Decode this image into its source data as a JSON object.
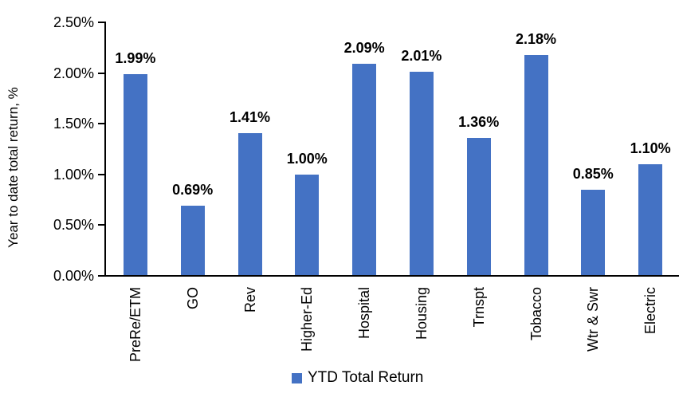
{
  "chart_data": {
    "type": "bar",
    "categories": [
      "PreRe/ETM",
      "GO",
      "Rev",
      "Higher-Ed",
      "Hospital",
      "Housing",
      "Trnspt",
      "Tobacco",
      "Wtr & Swr",
      "Electric"
    ],
    "values": [
      1.99,
      0.69,
      1.41,
      1.0,
      2.09,
      2.01,
      1.36,
      2.18,
      0.85,
      1.1
    ],
    "value_labels": [
      "1.99%",
      "0.69%",
      "1.41%",
      "1.00%",
      "2.09%",
      "2.01%",
      "1.36%",
      "2.18%",
      "0.85%",
      "1.10%"
    ],
    "title": "",
    "xlabel": "",
    "ylabel": "Year to date total return, %",
    "ylim": [
      0,
      2.5
    ],
    "ytick_values": [
      2.5,
      2.0,
      1.5,
      1.0,
      0.5,
      0.0
    ],
    "ytick_labels": [
      "2.50%",
      "2.00%",
      "1.50%",
      "1.00%",
      "0.50%",
      "0.00%"
    ],
    "legend": "YTD Total Return",
    "legend_position": "bottom",
    "grid": false,
    "bar_color": "#4472C4",
    "axis_color": "#000000",
    "text_color": "#000000"
  }
}
